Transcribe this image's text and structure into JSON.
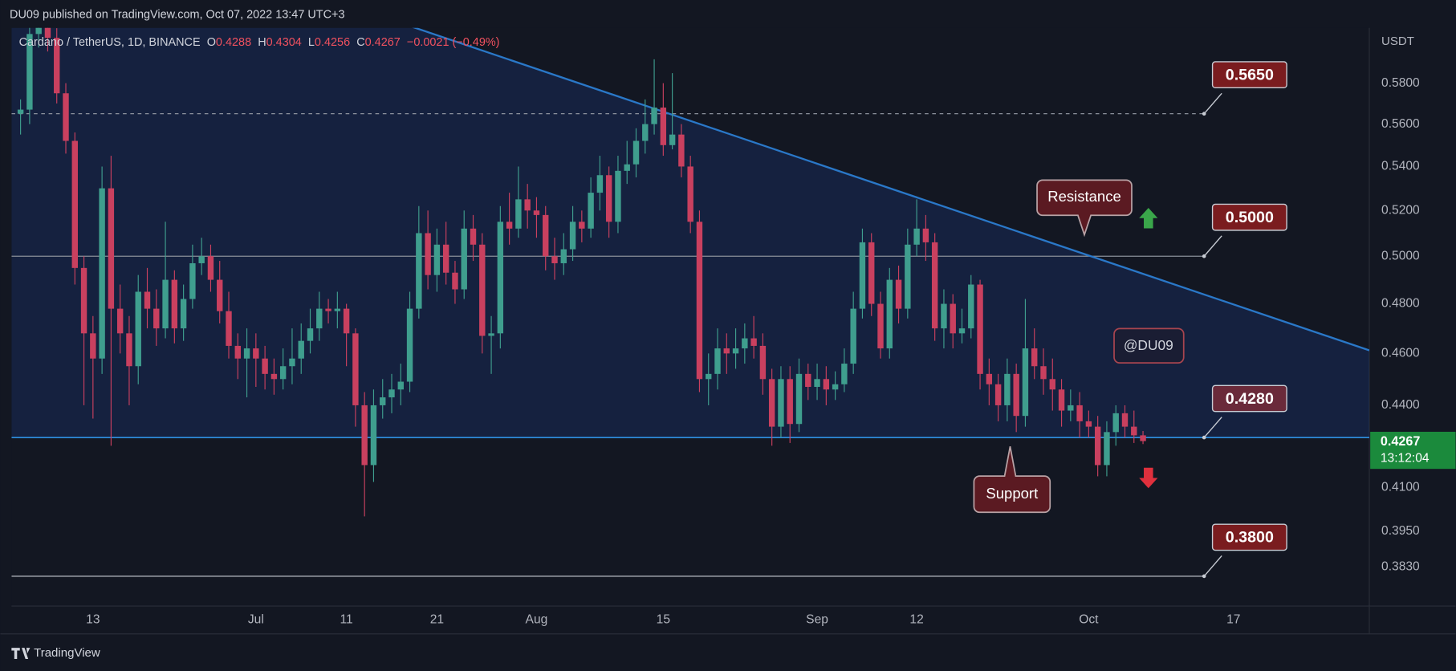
{
  "header": {
    "publisher": "DU09 published on TradingView.com, Oct 07, 2022 13:47 UTC+3",
    "brand": "TradingView"
  },
  "chart_data": {
    "type": "candlestick",
    "title": "Cardano / TetherUS, 1D, BINANCE",
    "ohlc_labels": {
      "open": "O",
      "high": "H",
      "low": "L",
      "close": "C"
    },
    "change_label": "−0.0021 (−0.49%)",
    "y_axis_label": "USDT",
    "log_scale": true,
    "ylim": [
      0.3704,
      0.6082
    ],
    "yticks": [
      {
        "value": 0.58,
        "label": "0.5800"
      },
      {
        "value": 0.56,
        "label": "0.5600"
      },
      {
        "value": 0.54,
        "label": "0.5400"
      },
      {
        "value": 0.52,
        "label": "0.5200"
      },
      {
        "value": 0.5,
        "label": "0.5000"
      },
      {
        "value": 0.48,
        "label": "0.4800"
      },
      {
        "value": 0.46,
        "label": "0.4600"
      },
      {
        "value": 0.44,
        "label": "0.4400"
      },
      {
        "value": 0.41,
        "label": "0.4100"
      },
      {
        "value": 0.395,
        "label": "0.3950"
      },
      {
        "value": 0.383,
        "label": "0.3830"
      }
    ],
    "xlim": [
      "Jun 4",
      "Nov 1"
    ],
    "xticks": [
      {
        "value": "Jun 13",
        "label": "13"
      },
      {
        "value": "Jul 1",
        "label": "Jul"
      },
      {
        "value": "Jul 11",
        "label": "11"
      },
      {
        "value": "Jul 21",
        "label": "21"
      },
      {
        "value": "Aug 1",
        "label": "Aug"
      },
      {
        "value": "Aug 15",
        "label": "15"
      },
      {
        "value": "Sep 1",
        "label": "Sep"
      },
      {
        "value": "Sep 12",
        "label": "12"
      },
      {
        "value": "Oct 1",
        "label": "Oct"
      },
      {
        "value": "Oct 17",
        "label": "17"
      }
    ],
    "up_color": "#3f9e8e",
    "down_color": "#c9405f",
    "x": [
      "Jun 5",
      "Jun 6",
      "Jun 7",
      "Jun 8",
      "Jun 9",
      "Jun 10",
      "Jun 11",
      "Jun 12",
      "Jun 13",
      "Jun 14",
      "Jun 15",
      "Jun 16",
      "Jun 17",
      "Jun 18",
      "Jun 19",
      "Jun 20",
      "Jun 21",
      "Jun 22",
      "Jun 23",
      "Jun 24",
      "Jun 25",
      "Jun 26",
      "Jun 27",
      "Jun 28",
      "Jun 29",
      "Jun 30",
      "Jul 1",
      "Jul 2",
      "Jul 3",
      "Jul 4",
      "Jul 5",
      "Jul 6",
      "Jul 7",
      "Jul 8",
      "Jul 9",
      "Jul 10",
      "Jul 11",
      "Jul 12",
      "Jul 13",
      "Jul 14",
      "Jul 15",
      "Jul 16",
      "Jul 17",
      "Jul 18",
      "Jul 19",
      "Jul 20",
      "Jul 21",
      "Jul 22",
      "Jul 23",
      "Jul 24",
      "Jul 25",
      "Jul 26",
      "Jul 27",
      "Jul 28",
      "Jul 29",
      "Jul 30",
      "Jul 31",
      "Aug 1",
      "Aug 2",
      "Aug 3",
      "Aug 4",
      "Aug 5",
      "Aug 6",
      "Aug 7",
      "Aug 8",
      "Aug 9",
      "Aug 10",
      "Aug 11",
      "Aug 12",
      "Aug 13",
      "Aug 14",
      "Aug 15",
      "Aug 16",
      "Aug 17",
      "Aug 18",
      "Aug 19",
      "Aug 20",
      "Aug 21",
      "Aug 22",
      "Aug 23",
      "Aug 24",
      "Aug 25",
      "Aug 26",
      "Aug 27",
      "Aug 28",
      "Aug 29",
      "Aug 30",
      "Aug 31",
      "Sep 1",
      "Sep 2",
      "Sep 3",
      "Sep 4",
      "Sep 5",
      "Sep 6",
      "Sep 7",
      "Sep 8",
      "Sep 9",
      "Sep 10",
      "Sep 11",
      "Sep 12",
      "Sep 13",
      "Sep 14",
      "Sep 15",
      "Sep 16",
      "Sep 17",
      "Sep 18",
      "Sep 19",
      "Sep 20",
      "Sep 21",
      "Sep 22",
      "Sep 23",
      "Sep 24",
      "Sep 25",
      "Sep 26",
      "Sep 27",
      "Sep 28",
      "Sep 29",
      "Sep 30",
      "Oct 1",
      "Oct 2",
      "Oct 3",
      "Oct 4",
      "Oct 5",
      "Oct 6",
      "Oct 7"
    ],
    "open": [
      0.565,
      0.567,
      0.605,
      0.612,
      0.603,
      0.575,
      0.552,
      0.495,
      0.468,
      0.458,
      0.53,
      0.478,
      0.468,
      0.455,
      0.485,
      0.478,
      0.47,
      0.49,
      0.47,
      0.482,
      0.497,
      0.5,
      0.49,
      0.477,
      0.463,
      0.458,
      0.462,
      0.458,
      0.452,
      0.45,
      0.455,
      0.458,
      0.465,
      0.47,
      0.478,
      0.477,
      0.478,
      0.468,
      0.44,
      0.418,
      0.44,
      0.443,
      0.446,
      0.449,
      0.478,
      0.51,
      0.492,
      0.505,
      0.493,
      0.486,
      0.512,
      0.505,
      0.467,
      0.468,
      0.515,
      0.512,
      0.525,
      0.52,
      0.518,
      0.5,
      0.497,
      0.503,
      0.515,
      0.512,
      0.528,
      0.536,
      0.515,
      0.538,
      0.541,
      0.552,
      0.56,
      0.568,
      0.55,
      0.555,
      0.54,
      0.515,
      0.45,
      0.452,
      0.462,
      0.46,
      0.462,
      0.466,
      0.463,
      0.45,
      0.432,
      0.45,
      0.433,
      0.452,
      0.447,
      0.45,
      0.446,
      0.448,
      0.456,
      0.478,
      0.506,
      0.48,
      0.462,
      0.49,
      0.478,
      0.505,
      0.512,
      0.506,
      0.47,
      0.48,
      0.468,
      0.47,
      0.488,
      0.452,
      0.448,
      0.44,
      0.452,
      0.436,
      0.462,
      0.455,
      0.45,
      0.446,
      0.438,
      0.44,
      0.434,
      0.432,
      0.418,
      0.43,
      0.437,
      0.432,
      0.4288
    ],
    "high": [
      0.572,
      0.612,
      0.62,
      0.618,
      0.608,
      0.58,
      0.556,
      0.5,
      0.475,
      0.54,
      0.545,
      0.488,
      0.475,
      0.492,
      0.495,
      0.486,
      0.515,
      0.494,
      0.488,
      0.505,
      0.508,
      0.505,
      0.498,
      0.485,
      0.468,
      0.47,
      0.468,
      0.463,
      0.458,
      0.462,
      0.47,
      0.472,
      0.478,
      0.485,
      0.482,
      0.485,
      0.48,
      0.47,
      0.445,
      0.446,
      0.45,
      0.452,
      0.456,
      0.485,
      0.522,
      0.52,
      0.512,
      0.515,
      0.498,
      0.52,
      0.518,
      0.51,
      0.475,
      0.522,
      0.528,
      0.54,
      0.532,
      0.526,
      0.522,
      0.508,
      0.51,
      0.522,
      0.52,
      0.535,
      0.545,
      0.54,
      0.545,
      0.552,
      0.558,
      0.572,
      0.592,
      0.58,
      0.585,
      0.56,
      0.545,
      0.52,
      0.46,
      0.47,
      0.468,
      0.47,
      0.472,
      0.475,
      0.468,
      0.454,
      0.455,
      0.455,
      0.458,
      0.456,
      0.456,
      0.455,
      0.453,
      0.462,
      0.485,
      0.512,
      0.51,
      0.485,
      0.495,
      0.496,
      0.512,
      0.525,
      0.518,
      0.51,
      0.486,
      0.484,
      0.478,
      0.492,
      0.49,
      0.458,
      0.452,
      0.458,
      0.456,
      0.482,
      0.47,
      0.462,
      0.458,
      0.45,
      0.446,
      0.445,
      0.438,
      0.436,
      0.434,
      0.44,
      0.44,
      0.438,
      0.4304
    ],
    "low": [
      0.555,
      0.56,
      0.598,
      0.596,
      0.57,
      0.546,
      0.488,
      0.44,
      0.435,
      0.452,
      0.425,
      0.46,
      0.44,
      0.448,
      0.47,
      0.463,
      0.466,
      0.464,
      0.465,
      0.478,
      0.492,
      0.485,
      0.472,
      0.458,
      0.45,
      0.443,
      0.447,
      0.446,
      0.444,
      0.446,
      0.448,
      0.452,
      0.46,
      0.465,
      0.472,
      0.47,
      0.455,
      0.432,
      0.4,
      0.412,
      0.435,
      0.437,
      0.44,
      0.445,
      0.474,
      0.486,
      0.485,
      0.488,
      0.48,
      0.482,
      0.498,
      0.46,
      0.452,
      0.462,
      0.505,
      0.508,
      0.512,
      0.508,
      0.494,
      0.49,
      0.492,
      0.498,
      0.506,
      0.508,
      0.52,
      0.508,
      0.51,
      0.532,
      0.535,
      0.546,
      0.555,
      0.545,
      0.548,
      0.535,
      0.51,
      0.445,
      0.44,
      0.446,
      0.452,
      0.454,
      0.456,
      0.458,
      0.444,
      0.425,
      0.428,
      0.426,
      0.43,
      0.442,
      0.442,
      0.44,
      0.442,
      0.445,
      0.452,
      0.474,
      0.475,
      0.458,
      0.458,
      0.472,
      0.474,
      0.5,
      0.498,
      0.465,
      0.462,
      0.462,
      0.464,
      0.466,
      0.446,
      0.44,
      0.434,
      0.434,
      0.43,
      0.432,
      0.45,
      0.444,
      0.438,
      0.432,
      0.434,
      0.428,
      0.428,
      0.414,
      0.414,
      0.425,
      0.428,
      0.426,
      0.4256
    ],
    "close": [
      0.567,
      0.605,
      0.612,
      0.603,
      0.575,
      0.552,
      0.495,
      0.468,
      0.458,
      0.53,
      0.478,
      0.468,
      0.455,
      0.485,
      0.478,
      0.47,
      0.49,
      0.47,
      0.482,
      0.497,
      0.5,
      0.49,
      0.477,
      0.463,
      0.458,
      0.462,
      0.458,
      0.452,
      0.45,
      0.455,
      0.458,
      0.465,
      0.47,
      0.478,
      0.477,
      0.478,
      0.468,
      0.44,
      0.418,
      0.44,
      0.443,
      0.446,
      0.449,
      0.478,
      0.51,
      0.492,
      0.505,
      0.493,
      0.486,
      0.512,
      0.505,
      0.467,
      0.468,
      0.515,
      0.512,
      0.525,
      0.52,
      0.518,
      0.5,
      0.497,
      0.503,
      0.515,
      0.512,
      0.528,
      0.536,
      0.515,
      0.538,
      0.541,
      0.552,
      0.56,
      0.568,
      0.55,
      0.555,
      0.54,
      0.515,
      0.45,
      0.452,
      0.462,
      0.46,
      0.462,
      0.466,
      0.463,
      0.45,
      0.432,
      0.45,
      0.433,
      0.452,
      0.447,
      0.45,
      0.446,
      0.448,
      0.456,
      0.478,
      0.506,
      0.48,
      0.462,
      0.49,
      0.478,
      0.505,
      0.512,
      0.506,
      0.47,
      0.48,
      0.468,
      0.47,
      0.488,
      0.452,
      0.448,
      0.44,
      0.452,
      0.436,
      0.462,
      0.455,
      0.45,
      0.446,
      0.438,
      0.44,
      0.434,
      0.432,
      0.418,
      0.43,
      0.437,
      0.432,
      0.4288,
      0.4267
    ],
    "levels": [
      {
        "value": 0.565,
        "label": "0.5650",
        "style": "dashed",
        "color": "#9aa0aa"
      },
      {
        "value": 0.5,
        "label": "0.5000",
        "style": "solid",
        "color": "#8a8f99"
      },
      {
        "value": 0.428,
        "label": "0.4280",
        "style": "solid",
        "color": "#2e8ad8"
      },
      {
        "value": 0.38,
        "label": "0.3800",
        "style": "solid",
        "color": "#c8ccd4"
      }
    ],
    "trendline": {
      "x": [
        "Aug 15",
        "Sep 24"
      ],
      "values": [
        0.566,
        0.5096
      ],
      "color": "#2a78c8"
    },
    "annotations": {
      "resistance": "Resistance",
      "support": "Support",
      "watermark": "@DU09"
    },
    "last_price": {
      "countdown": "13:12:04",
      "color": "#1b8a3c"
    }
  }
}
